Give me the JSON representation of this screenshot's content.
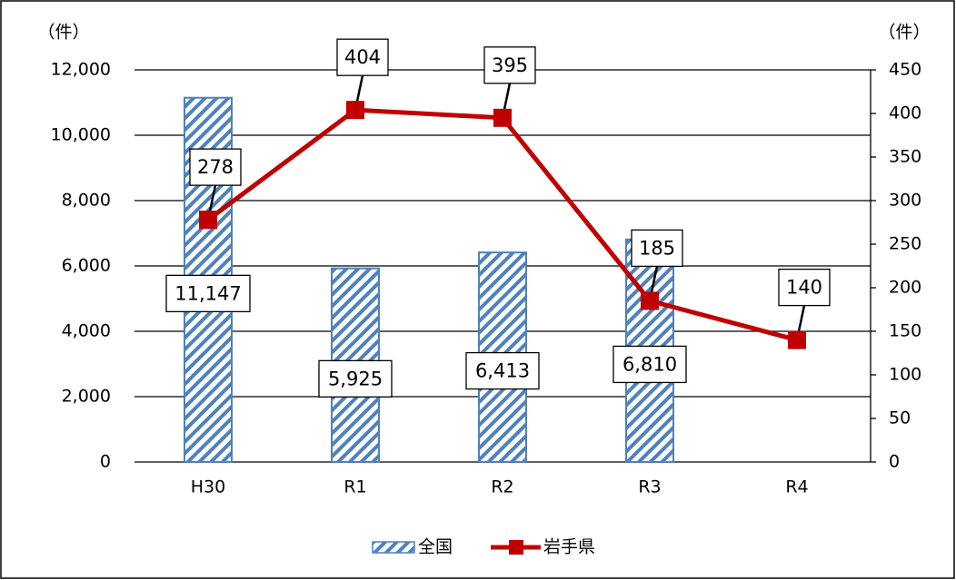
{
  "chart_data": {
    "type": "bar",
    "y_label": "（件）",
    "y2_label": "（件）",
    "categories": [
      "H30",
      "R1",
      "R2",
      "R3",
      "R4"
    ],
    "series": [
      {
        "name": "全国",
        "type": "bar",
        "color": "#4f81bd",
        "values": [
          11147,
          5925,
          6413,
          6810,
          null
        ],
        "value_labels": [
          "11,147",
          "5,925",
          "6,413",
          "6,810",
          null
        ]
      },
      {
        "name": "岩手県",
        "type": "line",
        "axis": "y2",
        "color": "#c00000",
        "values": [
          278,
          404,
          395,
          185,
          140
        ]
      }
    ],
    "ylim": [
      0,
      12000
    ],
    "yticks": [
      0,
      {
        "value": 2000,
        "label": "2,000"
      },
      {
        "value": 4000,
        "label": "4,000"
      },
      {
        "value": 6000,
        "label": "6,000"
      },
      {
        "value": 8000,
        "label": "8,000"
      },
      {
        "value": 10000,
        "label": "10,000"
      },
      {
        "value": 12000,
        "label": "12,000"
      }
    ],
    "y2lim": [
      0,
      450
    ],
    "y2ticks": [
      0,
      50,
      100,
      150,
      200,
      250,
      300,
      350,
      400,
      450
    ],
    "grid": true,
    "legend": "bottom"
  }
}
